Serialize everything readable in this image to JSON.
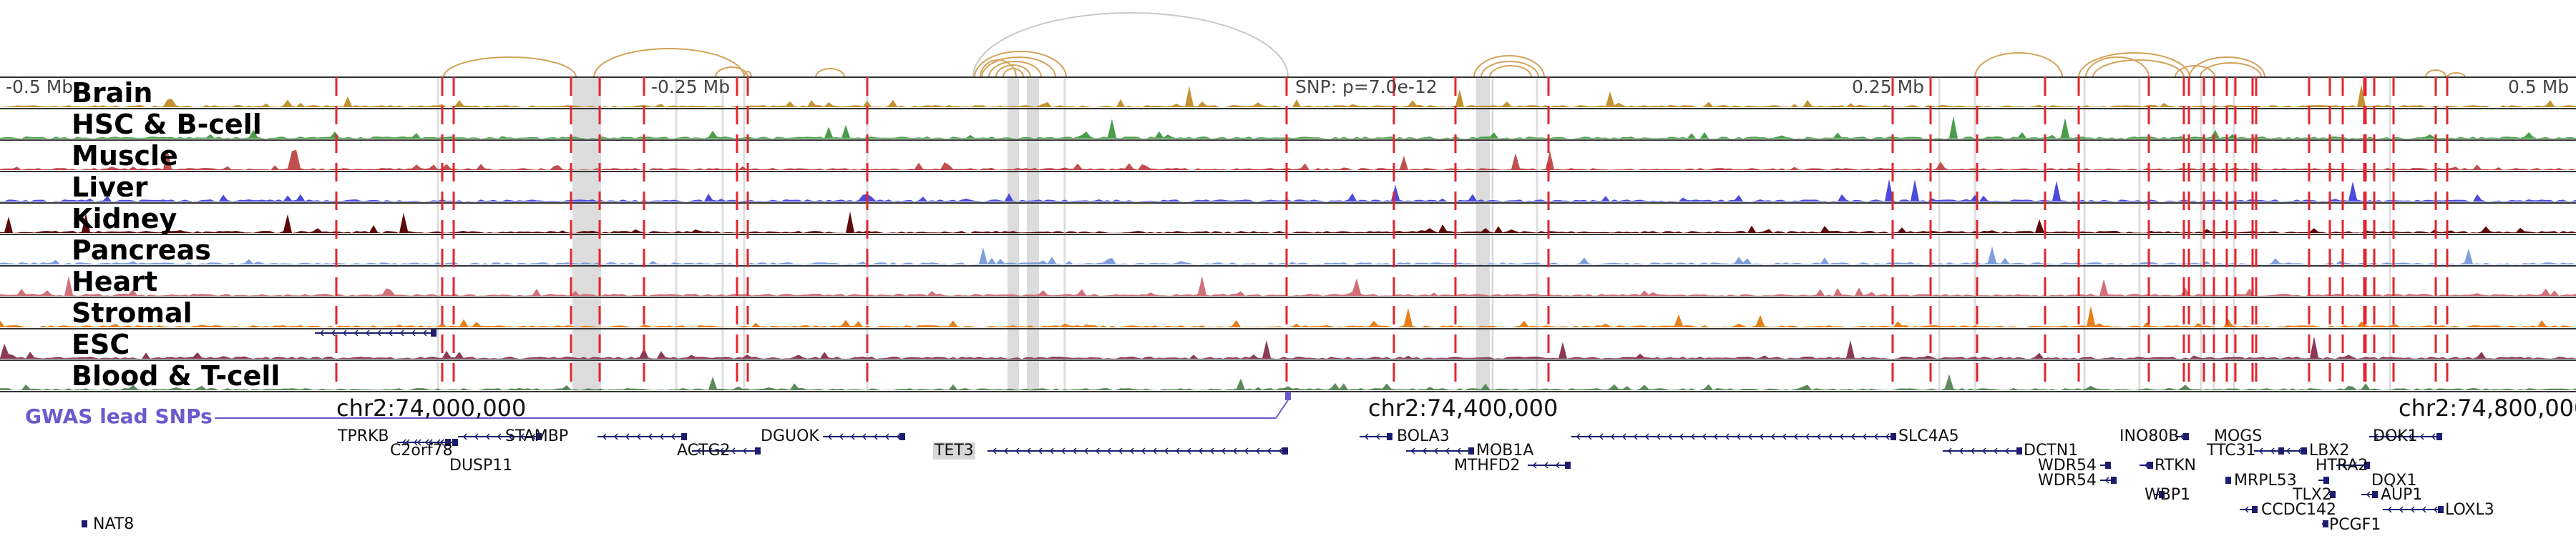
{
  "scale_labels": [
    "-0.5 Mb",
    "-0.25 Mb",
    "SNP: p=7.0e-12",
    "0.25 Mb",
    "0.5 Mb"
  ],
  "tracks": [
    {
      "label": "Brain",
      "color": "#c4922f"
    },
    {
      "label": "HSC & B-cell",
      "color": "#4a9e4a"
    },
    {
      "label": "Muscle",
      "color": "#c0504d"
    },
    {
      "label": "Liver",
      "color": "#4a4adc"
    },
    {
      "label": "Kidney",
      "color": "#5c0a0a"
    },
    {
      "label": "Pancreas",
      "color": "#7f9fdc"
    },
    {
      "label": "Heart",
      "color": "#d2707a"
    },
    {
      "label": "Stromal",
      "color": "#e87e16"
    },
    {
      "label": "ESC",
      "color": "#8b3a55"
    },
    {
      "label": "Blood & T-cell",
      "color": "#5d8a5d"
    }
  ],
  "coordinates": [
    "chr2:74,000,000",
    "chr2:74,400,000",
    "chr2:74,800,000"
  ],
  "gwas_label": "GWAS lead SNPs",
  "genes": [
    {
      "name": "TPRKB"
    },
    {
      "name": "C2orf78"
    },
    {
      "name": "DUSP11"
    },
    {
      "name": "STAMBP"
    },
    {
      "name": "ACTG2"
    },
    {
      "name": "DGUOK"
    },
    {
      "name": "TET3",
      "highlight": true
    },
    {
      "name": "NAT8"
    },
    {
      "name": "BOLA3"
    },
    {
      "name": "MOB1A"
    },
    {
      "name": "MTHFD2"
    },
    {
      "name": "SLC4A5"
    },
    {
      "name": "DCTN1"
    },
    {
      "name": "WDR54"
    },
    {
      "name": "WDR54"
    },
    {
      "name": "INO80B"
    },
    {
      "name": "MOGS"
    },
    {
      "name": "RTKN"
    },
    {
      "name": "WBP1"
    },
    {
      "name": "MRPL53"
    },
    {
      "name": "CCDC142"
    },
    {
      "name": "TTC31"
    },
    {
      "name": "LBX2"
    },
    {
      "name": "HTRA2"
    },
    {
      "name": "TLX2"
    },
    {
      "name": "PCGF1"
    },
    {
      "name": "DQX1"
    },
    {
      "name": "AUP1"
    },
    {
      "name": "DOK1"
    },
    {
      "name": "LOXL3"
    }
  ],
  "colors": {
    "gwas": "#6a5acd",
    "ld_arc": "#d4a25a",
    "lead_arc": "#c8c8c8",
    "snp_line": "#e4242e",
    "highlight": "#dcdcdc",
    "gene": "#1c1c6e"
  }
}
